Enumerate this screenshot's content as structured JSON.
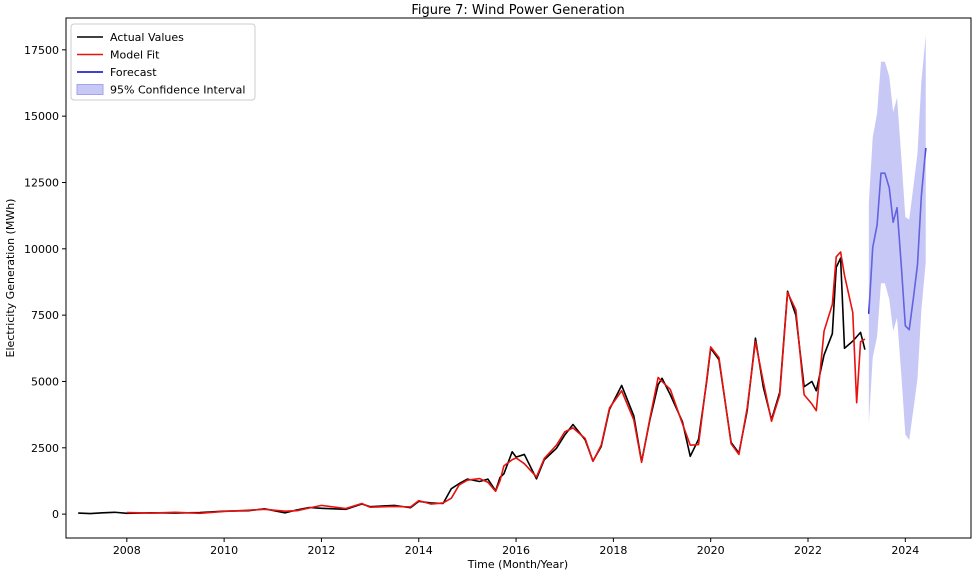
{
  "chart_data": {
    "type": "line",
    "title": "Figure 7: Wind Power Generation",
    "xlabel": "Time (Month/Year)",
    "ylabel": "Electricity Generation (MWh)",
    "xlim": [
      2006.75,
      2025.35
    ],
    "ylim": [
      -900,
      18700
    ],
    "xticks": [
      2008,
      2010,
      2012,
      2014,
      2016,
      2018,
      2020,
      2022,
      2024
    ],
    "yticks": [
      0,
      2500,
      5000,
      7500,
      10000,
      12500,
      15000,
      17500
    ],
    "grid": false,
    "legend": {
      "placement": "upper-left"
    },
    "colors": {
      "actual": "#000000",
      "fit": "#e8110e",
      "forecast": "#0000cc",
      "ci": "#a3a3f0"
    },
    "series": [
      {
        "name": "Actual Values",
        "kind": "line",
        "color": "#000000",
        "x": [
          2007.0,
          2007.25,
          2007.5,
          2007.75,
          2008.0,
          2008.5,
          2009.0,
          2009.5,
          2010.0,
          2010.5,
          2010.83,
          2011.25,
          2011.5,
          2011.75,
          2012.0,
          2012.5,
          2012.83,
          2013.0,
          2013.5,
          2013.83,
          2014.0,
          2014.25,
          2014.5,
          2014.67,
          2014.83,
          2015.0,
          2015.25,
          2015.42,
          2015.58,
          2015.67,
          2015.75,
          2015.92,
          2016.0,
          2016.17,
          2016.42,
          2016.58,
          2016.83,
          2017.0,
          2017.17,
          2017.42,
          2017.58,
          2017.75,
          2017.92,
          2018.17,
          2018.42,
          2018.58,
          2018.75,
          2018.92,
          2019.0,
          2019.17,
          2019.42,
          2019.58,
          2019.75,
          2019.92,
          2020.0,
          2020.17,
          2020.42,
          2020.58,
          2020.75,
          2020.92,
          2021.08,
          2021.25,
          2021.42,
          2021.58,
          2021.75,
          2021.92,
          2022.08,
          2022.17,
          2022.33,
          2022.5,
          2022.58,
          2022.67,
          2022.75,
          2022.92,
          2023.08,
          2023.17
        ],
        "y": [
          40,
          20,
          50,
          70,
          30,
          50,
          40,
          60,
          110,
          130,
          200,
          50,
          160,
          250,
          220,
          180,
          380,
          280,
          330,
          240,
          480,
          420,
          400,
          960,
          1150,
          1320,
          1230,
          1320,
          880,
          1380,
          1520,
          2350,
          2150,
          2250,
          1330,
          2050,
          2480,
          2980,
          3380,
          2800,
          2000,
          2550,
          3950,
          4850,
          3700,
          1980,
          3550,
          4880,
          5120,
          4500,
          3480,
          2180,
          2820,
          5030,
          6250,
          5820,
          2700,
          2300,
          3900,
          6630,
          4800,
          3560,
          4600,
          8400,
          7500,
          4800,
          5000,
          4650,
          6000,
          6800,
          9300,
          9650,
          6250,
          6520,
          6850,
          6200
        ]
      },
      {
        "name": "Model Fit",
        "kind": "line",
        "color": "#e8110e",
        "x": [
          2008.0,
          2008.5,
          2009.0,
          2009.5,
          2010.0,
          2010.5,
          2010.83,
          2011.25,
          2011.5,
          2011.75,
          2012.0,
          2012.5,
          2012.83,
          2013.0,
          2013.5,
          2013.83,
          2014.0,
          2014.25,
          2014.5,
          2014.67,
          2014.83,
          2015.0,
          2015.25,
          2015.42,
          2015.58,
          2015.67,
          2015.75,
          2015.92,
          2016.0,
          2016.17,
          2016.42,
          2016.58,
          2016.83,
          2017.0,
          2017.17,
          2017.42,
          2017.58,
          2017.75,
          2017.92,
          2018.17,
          2018.42,
          2018.58,
          2018.75,
          2018.92,
          2019.0,
          2019.17,
          2019.42,
          2019.58,
          2019.75,
          2019.92,
          2020.0,
          2020.17,
          2020.42,
          2020.58,
          2020.75,
          2020.92,
          2021.08,
          2021.25,
          2021.42,
          2021.58,
          2021.75,
          2021.92,
          2022.08,
          2022.17,
          2022.33,
          2022.5,
          2022.58,
          2022.67,
          2022.75,
          2022.92,
          2023.0,
          2023.08,
          2023.17
        ],
        "y": [
          60,
          40,
          70,
          30,
          100,
          150,
          180,
          110,
          130,
          230,
          330,
          210,
          400,
          260,
          290,
          270,
          510,
          380,
          420,
          600,
          1100,
          1280,
          1340,
          1200,
          860,
          1260,
          1820,
          2050,
          2120,
          1900,
          1400,
          2100,
          2600,
          3100,
          3250,
          2850,
          1990,
          2600,
          4000,
          4650,
          3550,
          1950,
          3600,
          5150,
          5000,
          4700,
          3400,
          2600,
          2620,
          5100,
          6300,
          5900,
          2650,
          2250,
          4000,
          6500,
          5000,
          3500,
          4500,
          8350,
          7700,
          4500,
          4150,
          3900,
          6900,
          7900,
          9700,
          9880,
          9000,
          7600,
          4200,
          6500,
          6600
        ]
      },
      {
        "name": "Forecast",
        "kind": "line",
        "color": "#0000cc",
        "x": [
          2023.25,
          2023.33,
          2023.42,
          2023.5,
          2023.58,
          2023.67,
          2023.75,
          2023.83,
          2023.92,
          2024.0,
          2024.08,
          2024.17,
          2024.25,
          2024.33,
          2024.42
        ],
        "y": [
          7550,
          10050,
          10900,
          12850,
          12850,
          12300,
          11000,
          11550,
          9300,
          7100,
          6950,
          8200,
          9400,
          12000,
          13800
        ]
      },
      {
        "name": "95% Confidence Interval",
        "kind": "band",
        "color": "#a3a3f0",
        "x": [
          2023.25,
          2023.33,
          2023.42,
          2023.5,
          2023.58,
          2023.67,
          2023.75,
          2023.83,
          2023.92,
          2024.0,
          2024.08,
          2024.17,
          2024.25,
          2024.33,
          2024.42
        ],
        "lower": [
          3400,
          5900,
          6700,
          8700,
          8700,
          8100,
          6900,
          7400,
          5200,
          3000,
          2800,
          4000,
          5100,
          7700,
          9500
        ],
        "upper": [
          11700,
          14200,
          15100,
          17050,
          17050,
          16500,
          15150,
          15700,
          13400,
          11200,
          11100,
          12400,
          13600,
          16300,
          18050
        ]
      }
    ]
  }
}
